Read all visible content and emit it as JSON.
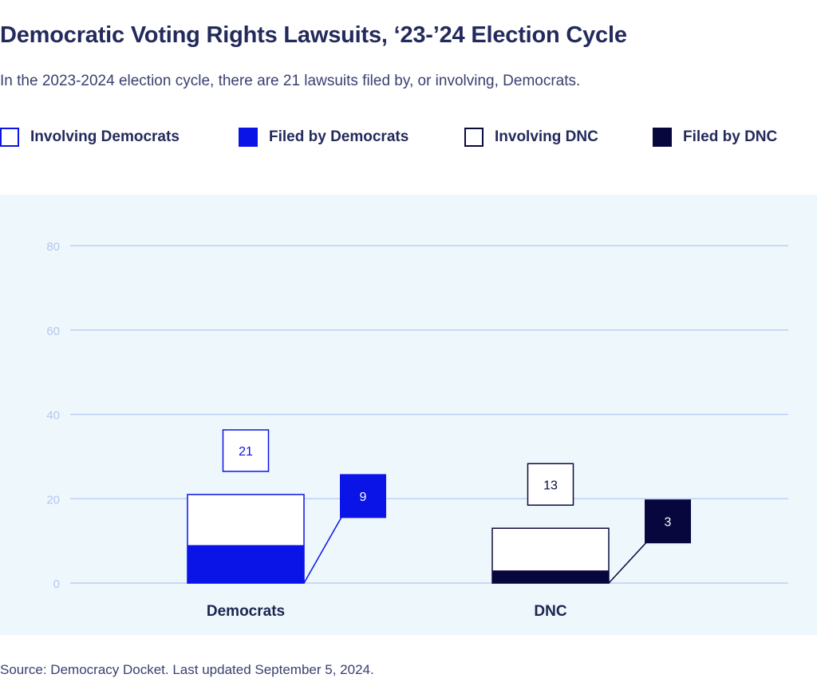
{
  "header": {
    "title": "Democratic Voting Rights Lawsuits, ‘23-’24 Election Cycle",
    "subtitle": "In the 2023-2024 election cycle, there are 21 lawsuits filed by, or involving, Democrats."
  },
  "legend": [
    {
      "label": "Involving Democrats",
      "fill": "#ffffff",
      "border": "#0a14e6"
    },
    {
      "label": "Filed by Democrats",
      "fill": "#0a14e6",
      "border": "#0a14e6"
    },
    {
      "label": "Involving DNC",
      "fill": "#ffffff",
      "border": "#0b0b3d"
    },
    {
      "label": "Filed by DNC",
      "fill": "#07073d",
      "border": "#07073d"
    }
  ],
  "chart_data": {
    "type": "bar",
    "categories": [
      "Democrats",
      "DNC"
    ],
    "series": [
      {
        "name": "Involving",
        "values": [
          21,
          13
        ]
      },
      {
        "name": "Filed by",
        "values": [
          9,
          3
        ]
      }
    ],
    "ylim": [
      0,
      80
    ],
    "yticks": [
      "0",
      "20",
      "40",
      "60",
      "80"
    ],
    "grid": true,
    "legend_position": "top",
    "colors": {
      "democrats_filed": "#0a14e6",
      "democrats_border": "#0a14e6",
      "dnc_filed": "#07073d",
      "dnc_border": "#0b0b3d",
      "gridline": "#bcd0f5",
      "tick_label": "#b6c6ec",
      "background": "#eef7fc"
    }
  },
  "footer": {
    "source": "Source: Democracy Docket. Last updated September 5, 2024."
  }
}
